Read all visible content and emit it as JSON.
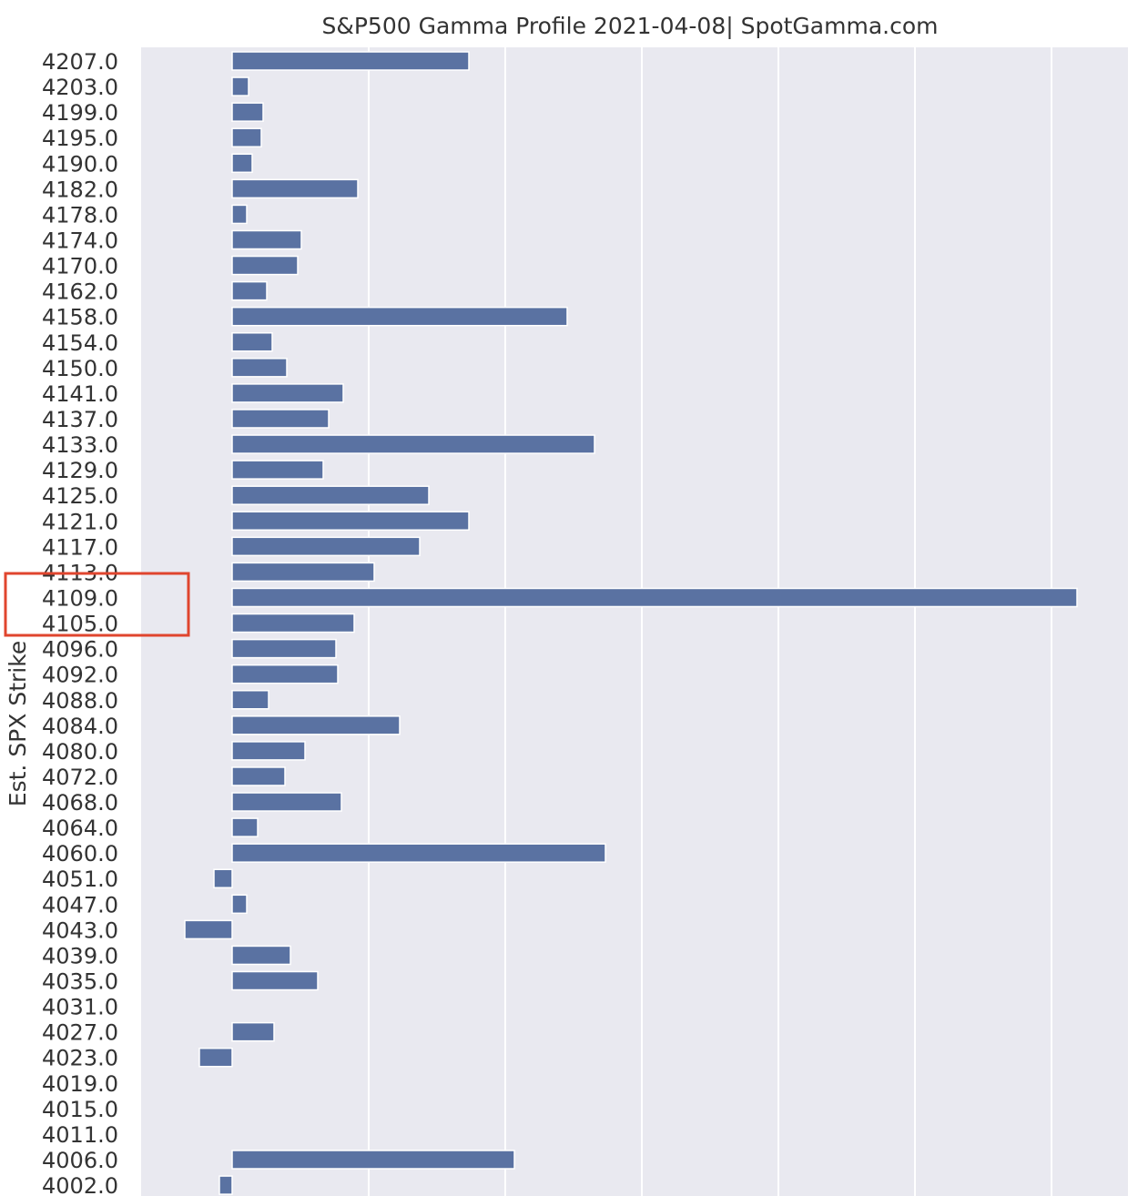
{
  "chart_data": {
    "type": "bar",
    "orientation": "horizontal",
    "title": "S&P500 Gamma Profile 2021-04-08| SpotGamma.com",
    "ylabel": "Est. SPX Strike",
    "xlabel": "",
    "grid": true,
    "bar_color": "#5a72a2",
    "background_color": "#e9e9f0",
    "highlight_color": "#e0452e",
    "highlighted_categories": [
      "4113.0",
      "4109.0",
      "4105.0"
    ],
    "categories": [
      "4207.0",
      "4203.0",
      "4199.0",
      "4195.0",
      "4190.0",
      "4182.0",
      "4178.0",
      "4174.0",
      "4170.0",
      "4162.0",
      "4158.0",
      "4154.0",
      "4150.0",
      "4141.0",
      "4137.0",
      "4133.0",
      "4129.0",
      "4125.0",
      "4121.0",
      "4117.0",
      "4113.0",
      "4109.0",
      "4105.0",
      "4096.0",
      "4092.0",
      "4088.0",
      "4084.0",
      "4080.0",
      "4072.0",
      "4068.0",
      "4064.0",
      "4060.0",
      "4051.0",
      "4047.0",
      "4043.0",
      "4039.0",
      "4035.0",
      "4031.0",
      "4027.0",
      "4023.0",
      "4019.0",
      "4015.0",
      "4011.0",
      "4006.0",
      "4002.0"
    ],
    "values": [
      260,
      18,
      34,
      32,
      22,
      138,
      16,
      76,
      72,
      38,
      368,
      44,
      60,
      122,
      106,
      398,
      100,
      216,
      260,
      206,
      156,
      928,
      134,
      114,
      116,
      40,
      184,
      80,
      58,
      120,
      28,
      410,
      -20,
      16,
      -52,
      64,
      94,
      0,
      46,
      -36,
      0,
      0,
      0,
      310,
      -14
    ],
    "xlim": [
      -100,
      984
    ]
  }
}
